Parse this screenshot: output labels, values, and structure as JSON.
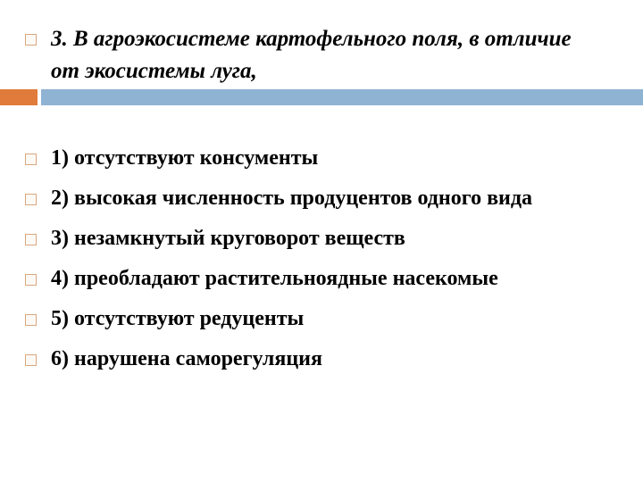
{
  "title": "3. В агроэкосистеме картофельного поля, в отличие от экосистемы луга,",
  "items": [
    {
      "label": "1) отсутствуют консументы"
    },
    {
      "label": "2) высокая численность продуцентов одного вида"
    },
    {
      "label": "3) незамкнутый круговорот веществ"
    },
    {
      "label": "4) преобладают растительноядные насекомые"
    },
    {
      "label": "5) отсутствуют редуценты"
    },
    {
      "label": "6) нарушена саморегуляция"
    }
  ],
  "colors": {
    "accent_orange": "#e07b3c",
    "accent_blue": "#8fb3d3",
    "bullet_border": "#d9a77f"
  }
}
